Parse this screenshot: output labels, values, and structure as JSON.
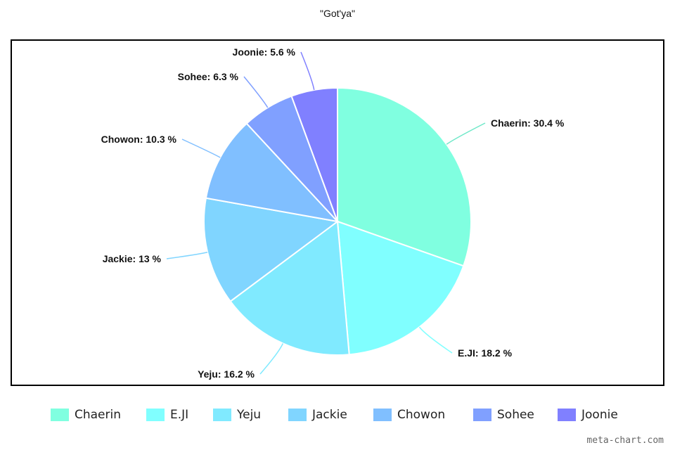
{
  "chart_data": {
    "type": "pie",
    "title": "\"Got'ya\"",
    "slices": [
      {
        "name": "Chaerin",
        "value": 30.4,
        "label": "Chaerin: 30.4 %",
        "color": "#80ffe0"
      },
      {
        "name": "E.JI",
        "value": 18.2,
        "label": "E.JI: 18.2 %",
        "color": "#80ffff"
      },
      {
        "name": "Yeju",
        "value": 16.2,
        "label": "Yeju: 16.2 %",
        "color": "#80eaff"
      },
      {
        "name": "Jackie",
        "value": 13,
        "label": "Jackie: 13 %",
        "color": "#80d5ff"
      },
      {
        "name": "Chowon",
        "value": 10.3,
        "label": "Chowon: 10.3 %",
        "color": "#80bfff"
      },
      {
        "name": "Sohee",
        "value": 6.3,
        "label": "Sohee: 6.3 %",
        "color": "#80a0ff"
      },
      {
        "name": "Joonie",
        "value": 5.6,
        "label": "Joonie: 5.6 %",
        "color": "#8080ff"
      }
    ],
    "legend_position": "bottom"
  },
  "watermark": "meta-chart.com"
}
